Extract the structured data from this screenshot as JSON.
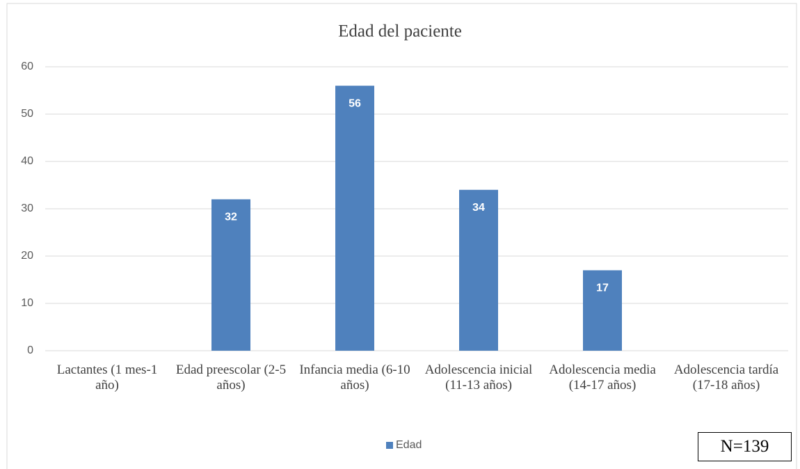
{
  "chart_data": {
    "type": "bar",
    "title": "Edad del paciente",
    "categories": [
      "Lactantes (1 mes-1 año)",
      "Edad preescolar (2-5 años)",
      "Infancia media (6-10 años)",
      "Adolescencia inicial (11-13 años)",
      "Adolescencia media (14-17 años)",
      "Adolescencia tardía (17-18 años)"
    ],
    "series": [
      {
        "name": "Edad",
        "color": "#4f81bd",
        "values": [
          null,
          32,
          56,
          34,
          17,
          null
        ]
      }
    ],
    "ylim": [
      0,
      60
    ],
    "yticks": [
      0,
      10,
      20,
      30,
      40,
      50,
      60
    ],
    "grid": true,
    "legend": "bottom",
    "annotation": "N=139"
  }
}
